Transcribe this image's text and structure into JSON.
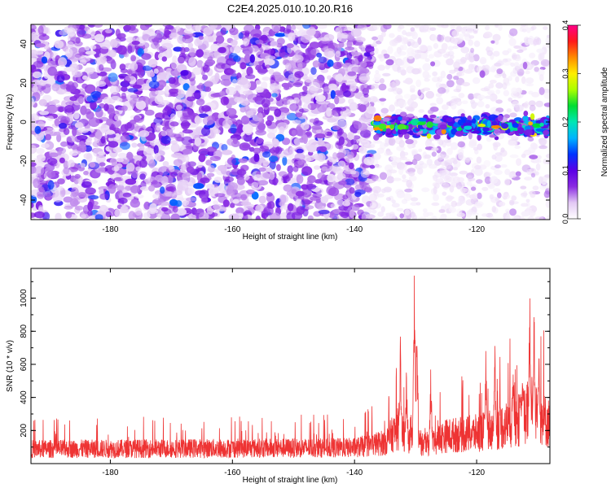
{
  "figure": {
    "title": "C2E4.2025.010.10.20.R16"
  },
  "chart_data": [
    {
      "type": "heatmap",
      "title": "C2E4.2025.010.10.20.R16",
      "xlabel": "Height of straight line (km)",
      "ylabel": "Frequency (Hz)",
      "xlim": [
        -193,
        -108
      ],
      "ylim": [
        -50,
        50
      ],
      "x_ticks": [
        -180,
        -160,
        -140,
        -120
      ],
      "y_ticks": [
        -40,
        -20,
        0,
        20,
        40
      ],
      "colorbar": {
        "label": "Normalized spectral amplitude",
        "range": [
          0.0,
          0.4
        ],
        "ticks": [
          0.0,
          0.1,
          0.2,
          0.3,
          0.4
        ],
        "colormap": [
          "#ffffff",
          "#e2c8f4",
          "#8a2be2",
          "#5a00e6",
          "#0033ff",
          "#00b4ff",
          "#00e6b4",
          "#00dd33",
          "#aaff00",
          "#ffee00",
          "#ff8c00",
          "#ff1a1a",
          "#ff0088"
        ]
      },
      "noise_region": {
        "x_range": [
          -193,
          -137
        ],
        "level": 0.03
      },
      "signal_band": {
        "x_range": [
          -137,
          -108
        ],
        "center_freq": -2,
        "half_width": 7,
        "peak_level": 0.35
      },
      "sparse_region": {
        "x_range": [
          -137,
          -108
        ],
        "level": 0.01
      }
    },
    {
      "type": "line",
      "xlabel": "Height of straight line (km)",
      "ylabel": "SNR (10 * v/v)",
      "xlim": [
        -193,
        -108
      ],
      "ylim": [
        0,
        1180
      ],
      "x_ticks": [
        -180,
        -160,
        -140,
        -120
      ],
      "y_ticks": [
        200,
        400,
        600,
        800,
        1000
      ],
      "series": [
        {
          "color": "#ee3333",
          "baseline_x": [
            -193,
            -140,
            -135,
            -133,
            -131,
            -130,
            -129,
            -128,
            -125,
            -120,
            -116,
            -113,
            -111,
            -110,
            -108
          ],
          "baseline_y": [
            110,
            120,
            160,
            260,
            200,
            350,
            140,
            150,
            210,
            230,
            280,
            330,
            420,
            360,
            300
          ],
          "peaks": [
            {
              "x": -132.5,
              "y": 780
            },
            {
              "x": -131.5,
              "y": 600
            },
            {
              "x": -130.2,
              "y": 1180
            },
            {
              "x": -129.8,
              "y": 1000
            },
            {
              "x": -127.5,
              "y": 620
            },
            {
              "x": -118.5,
              "y": 700
            },
            {
              "x": -117.0,
              "y": 780
            },
            {
              "x": -114.0,
              "y": 720
            },
            {
              "x": -112.5,
              "y": 780
            },
            {
              "x": -111.3,
              "y": 1100
            },
            {
              "x": -110.6,
              "y": 1080
            },
            {
              "x": -109.8,
              "y": 880
            }
          ]
        }
      ]
    }
  ]
}
